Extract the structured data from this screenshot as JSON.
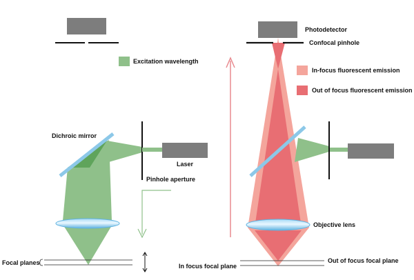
{
  "labels": {
    "excitation_wavelength": "Excitation wavelength",
    "dichroic_mirror": "Dichroic mirror",
    "laser": "Laser",
    "pinhole_aperture": "Pinhole aperture",
    "focal_planes": "Focal planes",
    "photodetector": "Photodetector",
    "confocal_pinhole": "Confocal pinhole",
    "in_focus_emission": "In-focus fluorescent emission",
    "out_of_focus_emission": "Out of focus fluorescent emission",
    "objective_lens": "Objective lens",
    "in_focus_focal_plane": "In focus focal plane",
    "out_of_focus_focal_plane": "Out of focus focal plane"
  },
  "colors": {
    "excitation_green": "#8fc08a",
    "excitation_dark_green": "#5fa45b",
    "in_focus_emission": "#f4a59c",
    "out_of_focus_emission": "#e86e73",
    "device_gray": "#7d7d7d",
    "mirror_blue": "#8cc8e8",
    "lens_blue": "#7cc3ea",
    "arrow_pink": "#e88a8f"
  }
}
